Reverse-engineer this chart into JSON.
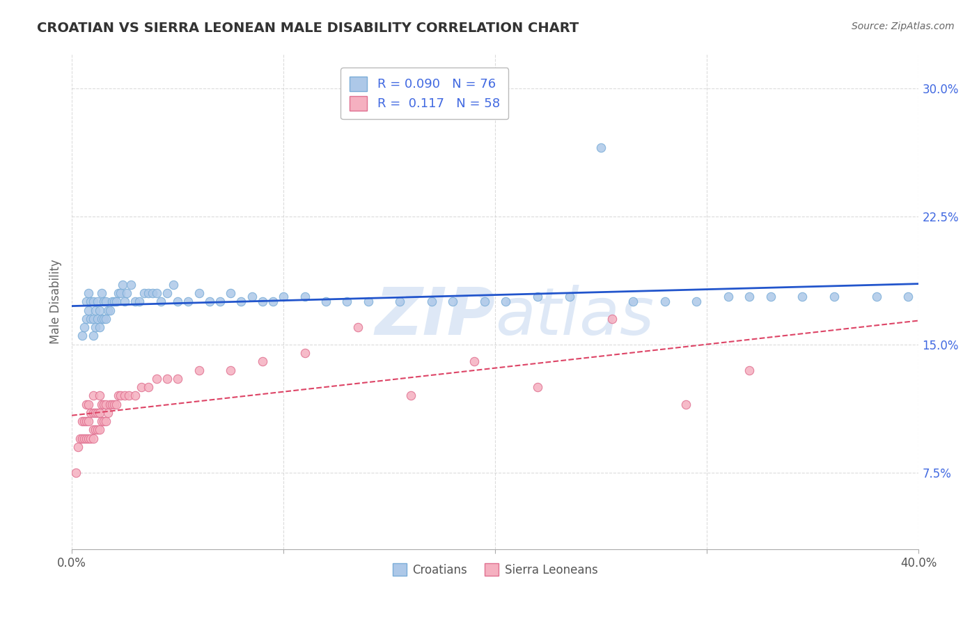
{
  "title": "CROATIAN VS SIERRA LEONEAN MALE DISABILITY CORRELATION CHART",
  "source": "Source: ZipAtlas.com",
  "ylabel": "Male Disability",
  "xlim": [
    0.0,
    0.4
  ],
  "ylim": [
    0.03,
    0.32
  ],
  "xticks": [
    0.0,
    0.1,
    0.2,
    0.3,
    0.4
  ],
  "xtick_labels_ends": [
    "0.0%",
    "40.0%"
  ],
  "yticks": [
    0.075,
    0.15,
    0.225,
    0.3
  ],
  "ytick_labels": [
    "7.5%",
    "15.0%",
    "22.5%",
    "30.0%"
  ],
  "croatian_color": "#adc8e8",
  "sl_color": "#f5b0c0",
  "croatian_edge": "#7aadd8",
  "sl_edge": "#e07090",
  "trendline_croatian": "#2255cc",
  "trendline_sl": "#dd4466",
  "watermark_color": "#c8daf0",
  "background_color": "#ffffff",
  "grid_color": "#cccccc",
  "croatian_x": [
    0.005,
    0.006,
    0.007,
    0.007,
    0.008,
    0.008,
    0.009,
    0.009,
    0.01,
    0.01,
    0.01,
    0.011,
    0.011,
    0.012,
    0.012,
    0.013,
    0.013,
    0.014,
    0.014,
    0.015,
    0.015,
    0.016,
    0.016,
    0.017,
    0.018,
    0.019,
    0.02,
    0.021,
    0.022,
    0.023,
    0.024,
    0.025,
    0.026,
    0.028,
    0.03,
    0.032,
    0.034,
    0.036,
    0.038,
    0.04,
    0.042,
    0.045,
    0.048,
    0.05,
    0.055,
    0.06,
    0.065,
    0.07,
    0.075,
    0.08,
    0.085,
    0.09,
    0.095,
    0.1,
    0.11,
    0.12,
    0.13,
    0.14,
    0.155,
    0.17,
    0.18,
    0.195,
    0.205,
    0.22,
    0.235,
    0.25,
    0.265,
    0.28,
    0.295,
    0.31,
    0.32,
    0.33,
    0.345,
    0.36,
    0.38,
    0.395
  ],
  "croatian_y": [
    0.155,
    0.16,
    0.165,
    0.175,
    0.17,
    0.18,
    0.165,
    0.175,
    0.155,
    0.165,
    0.175,
    0.16,
    0.17,
    0.165,
    0.175,
    0.16,
    0.17,
    0.165,
    0.18,
    0.165,
    0.175,
    0.165,
    0.175,
    0.17,
    0.17,
    0.175,
    0.175,
    0.175,
    0.18,
    0.18,
    0.185,
    0.175,
    0.18,
    0.185,
    0.175,
    0.175,
    0.18,
    0.18,
    0.18,
    0.18,
    0.175,
    0.18,
    0.185,
    0.175,
    0.175,
    0.18,
    0.175,
    0.175,
    0.18,
    0.175,
    0.178,
    0.175,
    0.175,
    0.178,
    0.178,
    0.175,
    0.175,
    0.175,
    0.175,
    0.175,
    0.175,
    0.175,
    0.175,
    0.178,
    0.178,
    0.265,
    0.175,
    0.175,
    0.175,
    0.178,
    0.178,
    0.178,
    0.178,
    0.178,
    0.178,
    0.178
  ],
  "sl_x": [
    0.002,
    0.003,
    0.004,
    0.005,
    0.005,
    0.006,
    0.006,
    0.007,
    0.007,
    0.007,
    0.008,
    0.008,
    0.008,
    0.009,
    0.009,
    0.01,
    0.01,
    0.01,
    0.01,
    0.011,
    0.011,
    0.012,
    0.012,
    0.013,
    0.013,
    0.013,
    0.014,
    0.014,
    0.015,
    0.015,
    0.016,
    0.016,
    0.017,
    0.018,
    0.019,
    0.02,
    0.021,
    0.022,
    0.023,
    0.025,
    0.027,
    0.03,
    0.033,
    0.036,
    0.04,
    0.045,
    0.05,
    0.06,
    0.075,
    0.09,
    0.11,
    0.135,
    0.16,
    0.19,
    0.22,
    0.255,
    0.29,
    0.32
  ],
  "sl_y": [
    0.075,
    0.09,
    0.095,
    0.095,
    0.105,
    0.095,
    0.105,
    0.095,
    0.105,
    0.115,
    0.095,
    0.105,
    0.115,
    0.095,
    0.11,
    0.095,
    0.1,
    0.11,
    0.12,
    0.1,
    0.11,
    0.1,
    0.11,
    0.1,
    0.11,
    0.12,
    0.105,
    0.115,
    0.105,
    0.115,
    0.105,
    0.115,
    0.11,
    0.115,
    0.115,
    0.115,
    0.115,
    0.12,
    0.12,
    0.12,
    0.12,
    0.12,
    0.125,
    0.125,
    0.13,
    0.13,
    0.13,
    0.135,
    0.135,
    0.14,
    0.145,
    0.16,
    0.12,
    0.14,
    0.125,
    0.165,
    0.115,
    0.135
  ]
}
